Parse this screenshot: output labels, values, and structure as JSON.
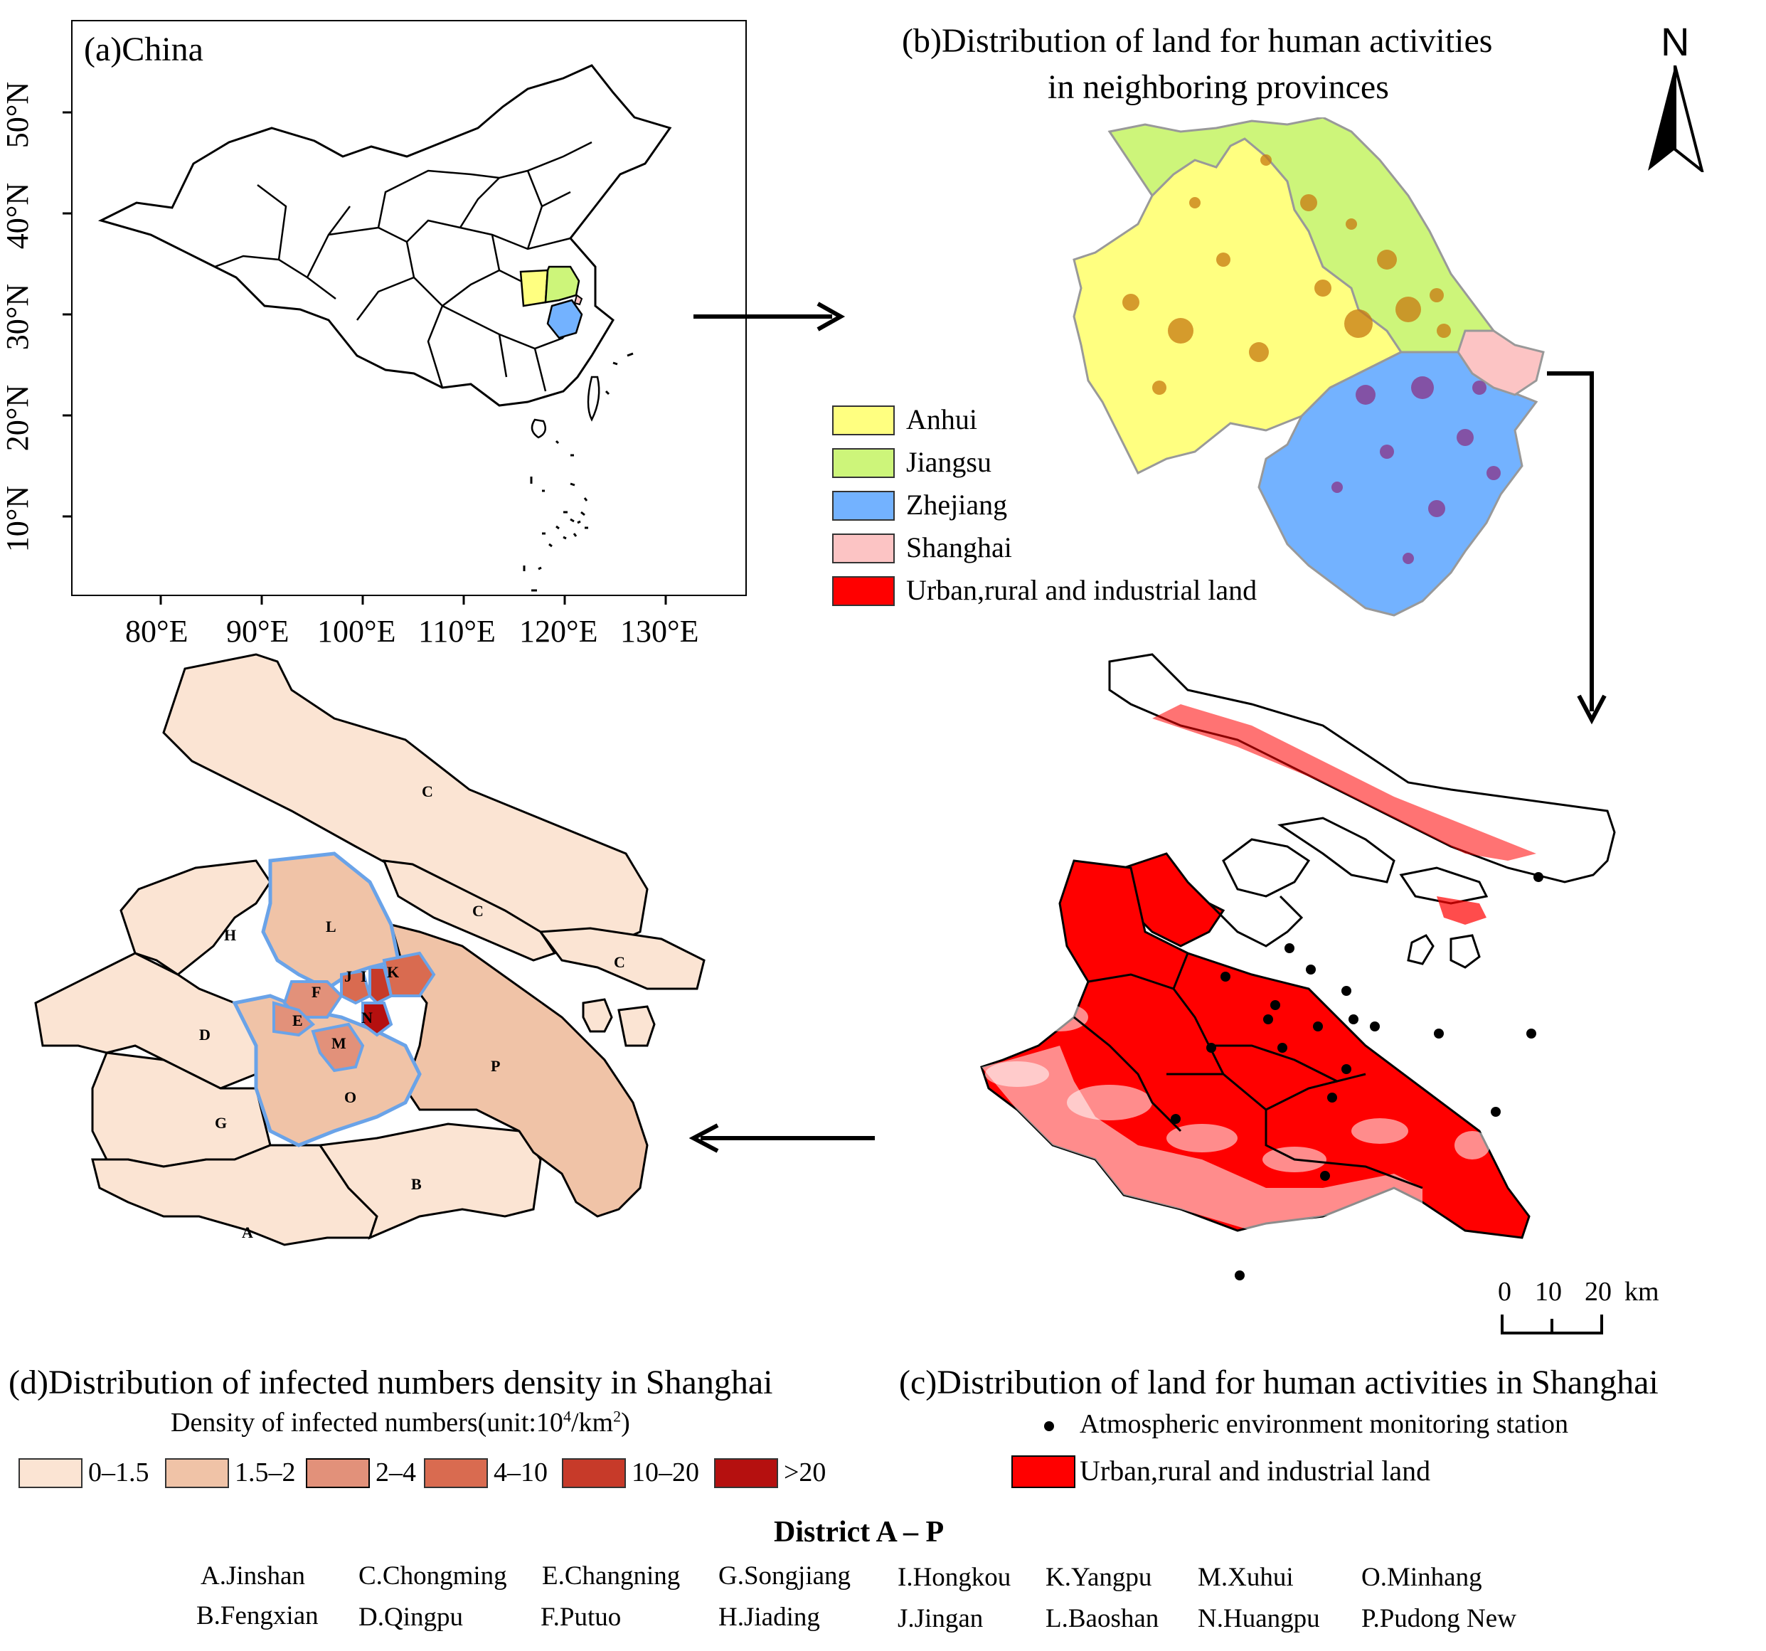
{
  "panel_a": {
    "title": "(a)China",
    "lat_ticks": [
      "50°N",
      "40°N",
      "30°N",
      "20°N",
      "10°N"
    ],
    "lon_ticks": [
      "80°E",
      "90°E",
      "100°E",
      "110°E",
      "120°E",
      "130°E"
    ]
  },
  "panel_b": {
    "title_line1": "(b)Distribution of land for human activities",
    "title_line2": "in neighboring provinces",
    "north_label": "N",
    "legend": [
      {
        "label": "Anhui",
        "color": "#ffff80"
      },
      {
        "label": "Jiangsu",
        "color": "#cdf57a"
      },
      {
        "label": "Zhejiang",
        "color": "#73b2ff"
      },
      {
        "label": "Shanghai",
        "color": "#fcc4c4"
      },
      {
        "label": "Urban,rural and industrial land",
        "color": "#ff0000"
      }
    ]
  },
  "panel_c": {
    "title": "(c)Distribution of land for human activities in Shanghai",
    "scale_labels": [
      "0",
      "10",
      "20",
      "km"
    ],
    "legend_station": "Atmospheric environment monitoring station",
    "legend_land": "Urban,rural and industrial land"
  },
  "panel_d": {
    "title": "(d)Distribution of infected numbers density in Shanghai",
    "legend_title_prefix": "Density of infected numbers(unit:10",
    "legend_title_exp": "4",
    "legend_title_mid": "/km",
    "legend_title_exp2": "2",
    "legend_title_suffix": ")",
    "legend": [
      {
        "label": "0–1.5",
        "color": "#fbe4d3"
      },
      {
        "label": "1.5–2",
        "color": "#f0c3a7"
      },
      {
        "label": "2–4",
        "color": "#e2917a"
      },
      {
        "label": "4–10",
        "color": "#d96b50"
      },
      {
        "label": "10–20",
        "color": "#c73a29"
      },
      {
        "label": ">20",
        "color": "#b5100f"
      }
    ],
    "district_letters": [
      "A",
      "B",
      "C",
      "C",
      "C",
      "D",
      "E",
      "F",
      "G",
      "H",
      "I",
      "J",
      "K",
      "L",
      "M",
      "N",
      "O",
      "P"
    ]
  },
  "districts": {
    "title": "District A – P",
    "row1": [
      "A.Jinshan",
      "C.Chongming",
      "E.Changning",
      "G.Songjiang",
      "I.Hongkou",
      "K.Yangpu",
      "M.Xuhui",
      "O.Minhang"
    ],
    "row2": [
      "B.Fengxian",
      "D.Qingpu",
      "F.Putuo",
      "H.Jiading",
      "J.Jingan",
      "L.Baoshan",
      "N.Huangpu",
      "P.Pudong New"
    ]
  }
}
